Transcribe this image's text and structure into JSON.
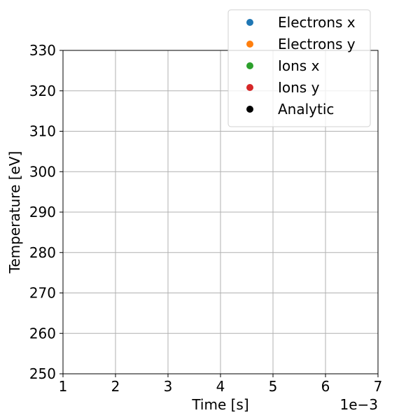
{
  "chart_data": {
    "type": "scatter",
    "title": "",
    "xlabel": "Time [s]",
    "ylabel": "Temperature [eV]",
    "x_offset_label": "1e−3",
    "xlim": [
      1,
      7
    ],
    "ylim": [
      250,
      330
    ],
    "xticks": [
      1,
      2,
      3,
      4,
      5,
      6,
      7
    ],
    "yticks": [
      250,
      260,
      270,
      280,
      290,
      300,
      310,
      320,
      330
    ],
    "xtick_labels": [
      "1",
      "2",
      "3",
      "4",
      "5",
      "6",
      "7"
    ],
    "ytick_labels": [
      "250",
      "260",
      "270",
      "280",
      "290",
      "300",
      "310",
      "320",
      "330"
    ],
    "grid": true,
    "legend_position": "top-right",
    "series": [
      {
        "name": "Electrons x",
        "color": "#1f77b4",
        "x": [],
        "y": []
      },
      {
        "name": "Electrons y",
        "color": "#ff7f0e",
        "x": [],
        "y": []
      },
      {
        "name": "Ions x",
        "color": "#2ca02c",
        "x": [],
        "y": []
      },
      {
        "name": "Ions y",
        "color": "#d62728",
        "x": [],
        "y": []
      },
      {
        "name": "Analytic",
        "color": "#000000",
        "x": [],
        "y": []
      }
    ]
  }
}
